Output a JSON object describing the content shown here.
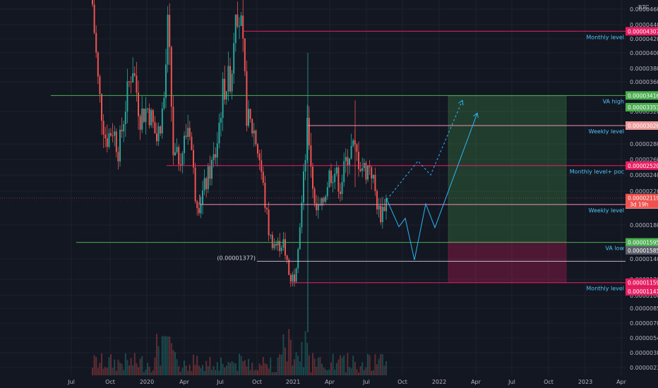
{
  "chart_data": {
    "type": "candlestick",
    "quote_currency": "BTC",
    "price_axis": {
      "ticks": [
        "0.00004600",
        "0.00004400",
        "0.00004200",
        "0.00004000",
        "0.00003800",
        "0.00003600",
        "0.00003200",
        "0.00002800",
        "0.00002600",
        "0.00002400",
        "0.00002200",
        "0.00001800",
        "0.00001400",
        "0.00001200",
        "0.00001000",
        "0.00000850",
        "0.00000700",
        "0.00000540",
        "0.00000380",
        "0.00000230"
      ]
    },
    "time_axis": {
      "ticks": [
        "Jul",
        "Oct",
        "2020",
        "Apr",
        "Jul",
        "Oct",
        "2021",
        "Apr",
        "Jul",
        "Oct",
        "2022",
        "Apr",
        "Jul",
        "Oct",
        "2023",
        "Apr"
      ]
    },
    "levels": [
      {
        "label": "Monthly level",
        "price": "0.00004307",
        "kind": "monthly"
      },
      {
        "label": "VA high",
        "price": "0.00003416",
        "price2": "0.00003353",
        "kind": "va"
      },
      {
        "label": "Weekly level",
        "price": "0.00003026",
        "kind": "weekly"
      },
      {
        "label": "Monthly level+ poc",
        "price": "0.00002520",
        "kind": "monthly"
      },
      {
        "label": "Weekly level",
        "price": "0.00002043",
        "kind": "weekly"
      },
      {
        "label": "VA low",
        "price": "0.00001595",
        "price2": "0.00001585",
        "kind": "va"
      },
      {
        "label": "Monthly level",
        "price": "0.00001159",
        "price2": "0.00001141",
        "kind": "monthly"
      }
    ],
    "current_price": {
      "value": "0.00002119",
      "countdown": "3d 19h"
    },
    "annotation": "(0.00001377)",
    "position": {
      "entry": 1.6e-05,
      "target": 3.41e-05,
      "stop": 1.16e-05
    },
    "colors": {
      "up": "#26a69a",
      "down": "#ef5350",
      "monthly": "#e91e63",
      "weekly": "#f48fb1",
      "va": "#4caf50",
      "projection": "#29b6f6",
      "tag_red": "#e91e63",
      "tag_green": "#4caf50",
      "tag_pink": "#ef9a9a",
      "tag_gray": "#5d606b"
    }
  }
}
